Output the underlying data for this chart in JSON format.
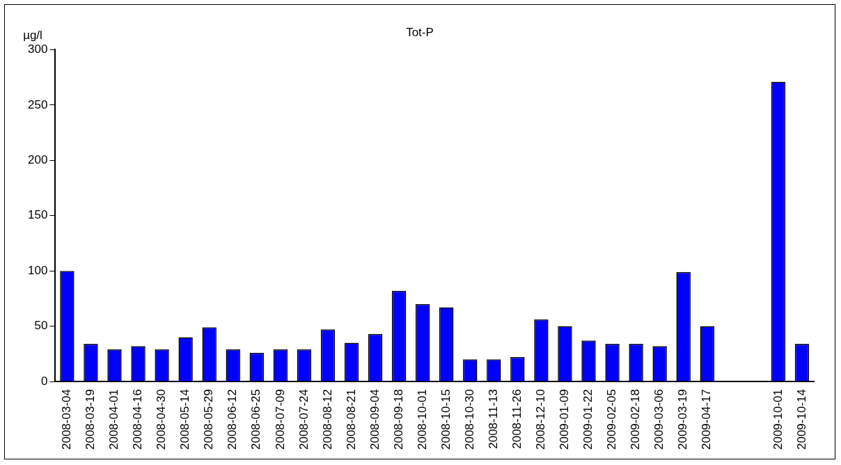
{
  "chart_data": {
    "type": "bar",
    "title": "Tot-P",
    "ylabel": "µg/l",
    "categories": [
      "2008-03-04",
      "2008-03-19",
      "2008-04-01",
      "2008-04-16",
      "2008-04-30",
      "2008-05-14",
      "2008-05-29",
      "2008-06-12",
      "2008-06-25",
      "2008-07-09",
      "2008-07-24",
      "2008-08-12",
      "2008-08-21",
      "2008-09-04",
      "2008-09-18",
      "2008-10-01",
      "2008-10-15",
      "2008-10-30",
      "2008-11-13",
      "2008-11-26",
      "2008-12-10",
      "2009-01-09",
      "2009-01-22",
      "2009-02-05",
      "2009-02-18",
      "2009-03-06",
      "2009-03-19",
      "2009-04-17",
      null,
      null,
      "2009-10-01",
      "2009-10-14"
    ],
    "values": [
      100,
      34,
      29,
      32,
      29,
      40,
      49,
      29,
      26,
      29,
      29,
      47,
      35,
      43,
      82,
      70,
      67,
      20,
      20,
      22,
      56,
      50,
      37,
      34,
      34,
      32,
      99,
      50,
      null,
      null,
      271,
      34
    ],
    "color": "#0000ff",
    "ylim": [
      0,
      300
    ],
    "yticks": [
      0,
      50,
      100,
      150,
      200,
      250,
      300
    ],
    "grid": false,
    "legend": false
  }
}
